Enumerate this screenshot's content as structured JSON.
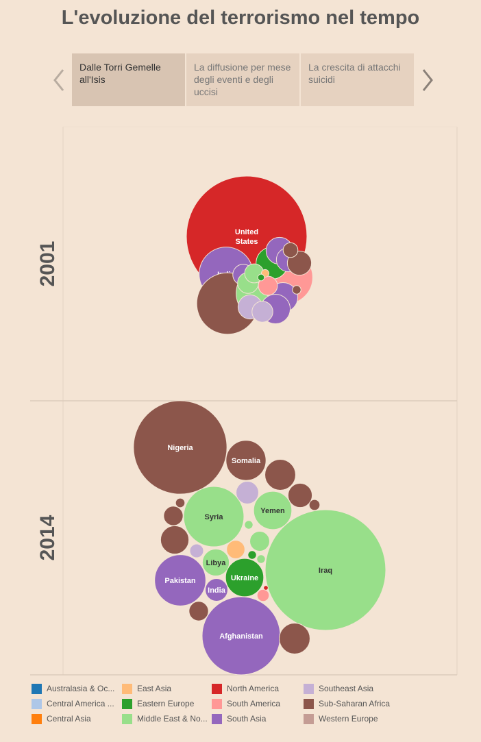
{
  "page": {
    "title": "L'evoluzione del terrorismo nel tempo"
  },
  "tabs": [
    {
      "label": "Dalle Torri Gemelle all'Isis",
      "active": true
    },
    {
      "label": "La diffusione per mese degli eventi e degli uccisi",
      "active": false
    },
    {
      "label": "La crescita di attacchi suicidi",
      "active": false
    }
  ],
  "icons": {
    "prev": "chevron-left-icon",
    "next": "chevron-right-icon"
  },
  "colors": {
    "Australasia & Oceania": "#1f77b4",
    "East Asia": "#ffbb78",
    "North America": "#d62728",
    "Southeast Asia": "#c5b0d5",
    "Central America & Caribbean": "#aec7e8",
    "Eastern Europe": "#2ca02c",
    "South America": "#ff9896",
    "Sub-Saharan Africa": "#8c564b",
    "Central Asia": "#ff7f0e",
    "Middle East & North Africa": "#98df8a",
    "South Asia": "#9467bd",
    "Western Europe": "#c49c94"
  },
  "legend": {
    "items": [
      {
        "label": "Australasia & Oc...",
        "region": "Australasia & Oceania"
      },
      {
        "label": "Central America ...",
        "region": "Central America & Caribbean"
      },
      {
        "label": "Central Asia",
        "region": "Central Asia"
      },
      {
        "label": "East Asia",
        "region": "East Asia"
      },
      {
        "label": "Eastern Europe",
        "region": "Eastern Europe"
      },
      {
        "label": "Middle East & No...",
        "region": "Middle East & North Africa"
      },
      {
        "label": "North America",
        "region": "North America"
      },
      {
        "label": "South America",
        "region": "South America"
      },
      {
        "label": "South Asia",
        "region": "South Asia"
      },
      {
        "label": "Southeast Asia",
        "region": "Southeast Asia"
      },
      {
        "label": "Sub-Saharan Africa",
        "region": "Sub-Saharan Africa"
      },
      {
        "label": "Western Europe",
        "region": "Western Europe"
      }
    ]
  },
  "chart_data": {
    "type": "bubble",
    "facets": [
      {
        "year": "2001",
        "bubbles": [
          {
            "label": "United States",
            "region": "North America",
            "value": 100
          },
          {
            "label": "India",
            "region": "South Asia",
            "value": 20
          },
          {
            "label": "",
            "region": "Sub-Saharan Africa",
            "value": 26
          },
          {
            "label": "",
            "region": "Middle East & North Africa",
            "value": 20
          },
          {
            "label": "",
            "region": "South America",
            "value": 19
          },
          {
            "label": "",
            "region": "Eastern Europe",
            "value": 7
          },
          {
            "label": "",
            "region": "South Asia",
            "value": 6
          },
          {
            "label": "",
            "region": "South Asia",
            "value": 6
          },
          {
            "label": "",
            "region": "South Asia",
            "value": 5
          },
          {
            "label": "",
            "region": "South Asia",
            "value": 4
          },
          {
            "label": "",
            "region": "South Asia",
            "value": 3
          },
          {
            "label": "",
            "region": "Southeast Asia",
            "value": 4
          },
          {
            "label": "",
            "region": "Southeast Asia",
            "value": 3
          },
          {
            "label": "",
            "region": "Sub-Saharan Africa",
            "value": 4
          },
          {
            "label": "",
            "region": "Sub-Saharan Africa",
            "value": 1.5
          },
          {
            "label": "",
            "region": "Sub-Saharan Africa",
            "value": 0.5
          },
          {
            "label": "",
            "region": "Middle East & North Africa",
            "value": 3
          },
          {
            "label": "",
            "region": "Middle East & North Africa",
            "value": 2.5
          },
          {
            "label": "",
            "region": "South America",
            "value": 2.5
          },
          {
            "label": "",
            "region": "East Asia",
            "value": 0.4
          },
          {
            "label": "",
            "region": "Eastern Europe",
            "value": 0.3
          }
        ]
      },
      {
        "year": "2014",
        "bubbles": [
          {
            "label": "Iraq",
            "region": "Middle East & North Africa",
            "value": 100
          },
          {
            "label": "Nigeria",
            "region": "Sub-Saharan Africa",
            "value": 60
          },
          {
            "label": "Afghanistan",
            "region": "South Asia",
            "value": 42
          },
          {
            "label": "Syria",
            "region": "Middle East & North Africa",
            "value": 25
          },
          {
            "label": "Pakistan",
            "region": "South Asia",
            "value": 18
          },
          {
            "label": "Somalia",
            "region": "Sub-Saharan Africa",
            "value": 11
          },
          {
            "label": "Yemen",
            "region": "Middle East & North Africa",
            "value": 10
          },
          {
            "label": "Ukraine",
            "region": "Eastern Europe",
            "value": 10
          },
          {
            "label": "Libya",
            "region": "Middle East & North Africa",
            "value": 5
          },
          {
            "label": "India",
            "region": "South Asia",
            "value": 3.5
          },
          {
            "label": "",
            "region": "Sub-Saharan Africa",
            "value": 6.5
          },
          {
            "label": "",
            "region": "Sub-Saharan Africa",
            "value": 6.5
          },
          {
            "label": "",
            "region": "Sub-Saharan Africa",
            "value": 5.5
          },
          {
            "label": "",
            "region": "Sub-Saharan Africa",
            "value": 4
          },
          {
            "label": "",
            "region": "Sub-Saharan Africa",
            "value": 2.6
          },
          {
            "label": "",
            "region": "Sub-Saharan Africa",
            "value": 2.6
          },
          {
            "label": "",
            "region": "Sub-Saharan Africa",
            "value": 0.8
          },
          {
            "label": "",
            "region": "Sub-Saharan Africa",
            "value": 0.6
          },
          {
            "label": "",
            "region": "Southeast Asia",
            "value": 3.5
          },
          {
            "label": "",
            "region": "Southeast Asia",
            "value": 1.3
          },
          {
            "label": "",
            "region": "Middle East & North Africa",
            "value": 2.7
          },
          {
            "label": "",
            "region": "Middle East & North Africa",
            "value": 0.5
          },
          {
            "label": "",
            "region": "Middle East & North Africa",
            "value": 0.5
          },
          {
            "label": "",
            "region": "East Asia",
            "value": 2.3
          },
          {
            "label": "",
            "region": "Eastern Europe",
            "value": 0.5
          },
          {
            "label": "",
            "region": "South America",
            "value": 1
          },
          {
            "label": "",
            "region": "North America",
            "value": 0.15
          }
        ]
      }
    ]
  }
}
